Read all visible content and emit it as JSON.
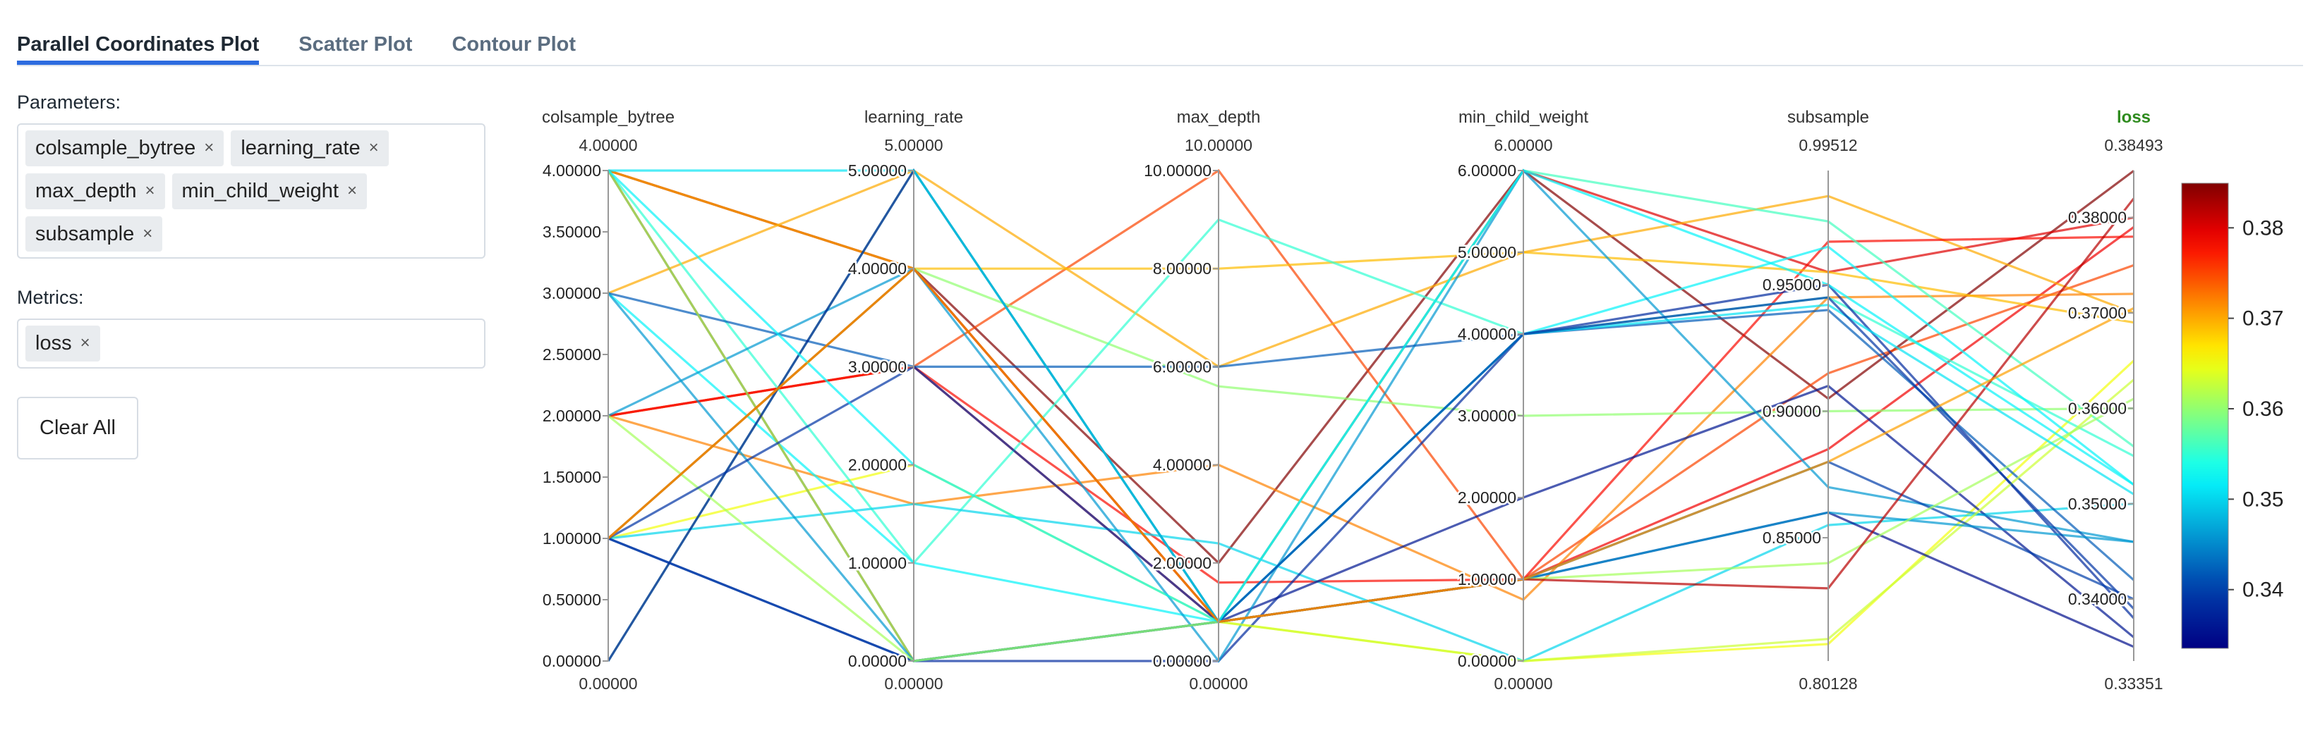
{
  "tabs": [
    {
      "label": "Parallel Coordinates Plot",
      "active": true
    },
    {
      "label": "Scatter Plot",
      "active": false
    },
    {
      "label": "Contour Plot",
      "active": false
    }
  ],
  "params": {
    "label": "Parameters:",
    "chips": [
      "colsample_bytree",
      "learning_rate",
      "max_depth",
      "min_child_weight",
      "subsample"
    ]
  },
  "metrics": {
    "label": "Metrics:",
    "chips": [
      "loss"
    ]
  },
  "clear_all_label": "Clear All",
  "chip_close_glyph": "×",
  "colors": {
    "tab_active_underline": "#2d6cdf",
    "loss_label": "#2e8b1e",
    "axis": "#999999"
  },
  "chart_data": {
    "type": "parallel_coordinates",
    "axes": [
      {
        "name": "colsample_bytree",
        "range": [
          0,
          4
        ],
        "top_label": "4.00000",
        "bottom_label": "0.00000",
        "ticks": [
          {
            "v": 4,
            "t": "4.00000"
          },
          {
            "v": 3.5,
            "t": "3.50000"
          },
          {
            "v": 3,
            "t": "3.00000"
          },
          {
            "v": 2.5,
            "t": "2.50000"
          },
          {
            "v": 2,
            "t": "2.00000"
          },
          {
            "v": 1.5,
            "t": "1.50000"
          },
          {
            "v": 1,
            "t": "1.00000"
          },
          {
            "v": 0.5,
            "t": "0.50000"
          },
          {
            "v": 0,
            "t": "0.00000"
          }
        ]
      },
      {
        "name": "learning_rate",
        "range": [
          0,
          5
        ],
        "top_label": "5.00000",
        "bottom_label": "0.00000",
        "ticks": [
          {
            "v": 5,
            "t": "5.00000"
          },
          {
            "v": 4,
            "t": "4.00000"
          },
          {
            "v": 3,
            "t": "3.00000"
          },
          {
            "v": 2,
            "t": "2.00000"
          },
          {
            "v": 1,
            "t": "1.00000"
          },
          {
            "v": 0,
            "t": "0.00000"
          }
        ]
      },
      {
        "name": "max_depth",
        "range": [
          0,
          10
        ],
        "top_label": "10.00000",
        "bottom_label": "0.00000",
        "ticks": [
          {
            "v": 10,
            "t": "10.00000"
          },
          {
            "v": 8,
            "t": "8.00000"
          },
          {
            "v": 6,
            "t": "6.00000"
          },
          {
            "v": 4,
            "t": "4.00000"
          },
          {
            "v": 2,
            "t": "2.00000"
          },
          {
            "v": 0,
            "t": "0.00000"
          }
        ]
      },
      {
        "name": "min_child_weight",
        "range": [
          0,
          6
        ],
        "top_label": "6.00000",
        "bottom_label": "0.00000",
        "ticks": [
          {
            "v": 6,
            "t": "6.00000"
          },
          {
            "v": 5,
            "t": "5.00000"
          },
          {
            "v": 4,
            "t": "4.00000"
          },
          {
            "v": 3,
            "t": "3.00000"
          },
          {
            "v": 2,
            "t": "2.00000"
          },
          {
            "v": 1,
            "t": "1.00000"
          },
          {
            "v": 0,
            "t": "0.00000"
          }
        ]
      },
      {
        "name": "subsample",
        "range": [
          0.80128,
          0.99512
        ],
        "top_label": "0.99512",
        "bottom_label": "0.80128",
        "ticks": [
          {
            "v": 0.95,
            "t": "0.95000"
          },
          {
            "v": 0.9,
            "t": "0.90000"
          },
          {
            "v": 0.85,
            "t": "0.85000"
          }
        ]
      },
      {
        "name": "loss",
        "range": [
          0.33351,
          0.38493
        ],
        "top_label": "0.38493",
        "bottom_label": "0.33351",
        "ticks": [
          {
            "v": 0.38,
            "t": "0.38000"
          },
          {
            "v": 0.37,
            "t": "0.37000"
          },
          {
            "v": 0.36,
            "t": "0.36000"
          },
          {
            "v": 0.35,
            "t": "0.35000"
          },
          {
            "v": 0.34,
            "t": "0.34000"
          }
        ]
      }
    ],
    "colorbar": {
      "metric": "loss",
      "range": [
        0.33351,
        0.38493
      ],
      "ticks": [
        {
          "v": 0.38,
          "t": "0.38"
        },
        {
          "v": 0.37,
          "t": "0.37"
        },
        {
          "v": 0.36,
          "t": "0.36"
        },
        {
          "v": 0.35,
          "t": "0.35"
        },
        {
          "v": 0.34,
          "t": "0.34"
        }
      ],
      "colorscale": "jet"
    },
    "lines": [
      [
        4,
        4,
        2,
        6,
        0.905,
        0.3849
      ],
      [
        4,
        4,
        0.8,
        6,
        0.955,
        0.38
      ],
      [
        2,
        3,
        0.8,
        1,
        0.885,
        0.379
      ],
      [
        2,
        3,
        10,
        1,
        0.915,
        0.375
      ],
      [
        3,
        5,
        6,
        5,
        0.985,
        0.37
      ],
      [
        2,
        1.6,
        4,
        0.75,
        0.945,
        0.372
      ],
      [
        2,
        3,
        1.6,
        1,
        0.967,
        0.378
      ],
      [
        4,
        4,
        8,
        5,
        0.955,
        0.369
      ],
      [
        1,
        4,
        5.6,
        3,
        0.9,
        0.36
      ],
      [
        1,
        2,
        0.8,
        0,
        0.808,
        0.365
      ],
      [
        4,
        1,
        9,
        4,
        0.945,
        0.355
      ],
      [
        0,
        5,
        0.8,
        6,
        0.975,
        0.356
      ],
      [
        1,
        1.6,
        2.4,
        0,
        0.855,
        0.35
      ],
      [
        3,
        1,
        0.8,
        4,
        0.965,
        0.352
      ],
      [
        1,
        0,
        0,
        4,
        0.95,
        0.338
      ],
      [
        4,
        0,
        0.8,
        2,
        0.91,
        0.336
      ],
      [
        2,
        4,
        0,
        6,
        0.87,
        0.346
      ],
      [
        3,
        3,
        6,
        4,
        0.94,
        0.342
      ],
      [
        4,
        0,
        0.8,
        0,
        0.81,
        0.363
      ],
      [
        0,
        5,
        0.8,
        1,
        0.86,
        0.335
      ],
      [
        1,
        0,
        0.8,
        1,
        0.88,
        0.34
      ],
      [
        3,
        0,
        0.8,
        1,
        0.86,
        0.346
      ],
      [
        2,
        0,
        0.8,
        1,
        0.84,
        0.361
      ],
      [
        4,
        5,
        0.8,
        4,
        0.942,
        0.351
      ],
      [
        1,
        3,
        0.8,
        4,
        0.945,
        0.339
      ],
      [
        1,
        4,
        0.8,
        1,
        0.83,
        0.382
      ],
      [
        4,
        2,
        0.8,
        6,
        0.95,
        0.352
      ],
      [
        1,
        4,
        0.8,
        1,
        0.88,
        0.3705
      ]
    ]
  }
}
